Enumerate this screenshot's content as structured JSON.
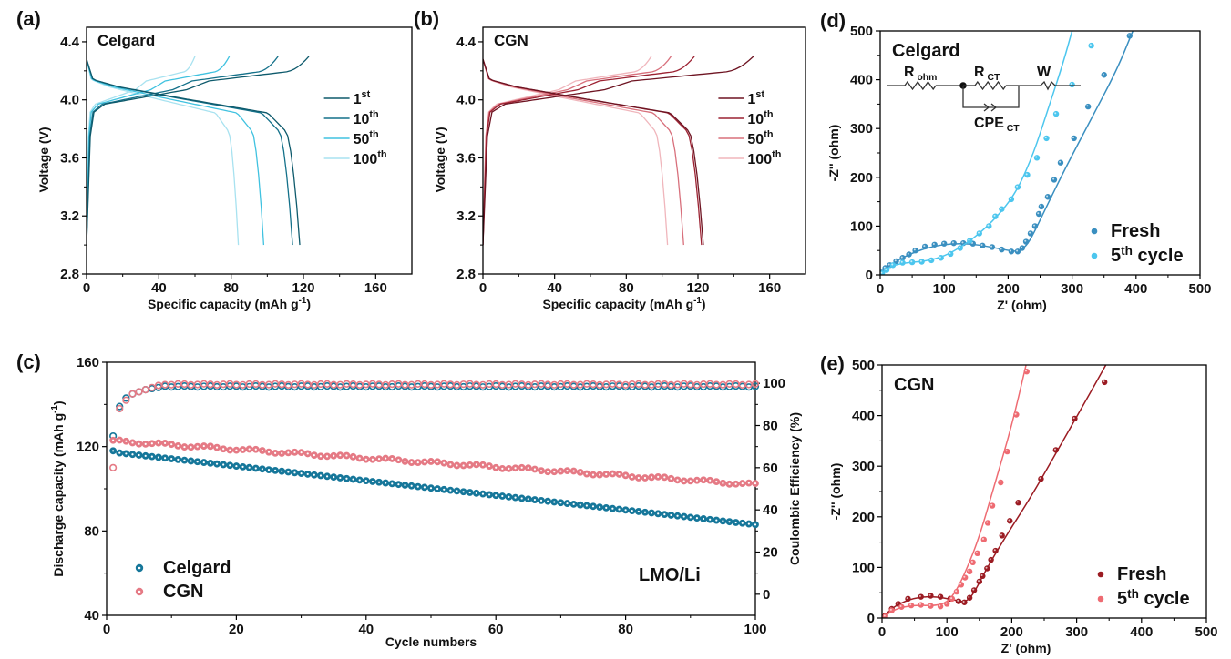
{
  "chart_data": [
    {
      "id": "a",
      "panel_label": "(a)",
      "type": "line",
      "title": "Celgard",
      "xlabel": "Specific capacity (mAh g",
      "xlabel_sup": "-1",
      "xlabel_end": ")",
      "ylabel": "Voltage (V)",
      "xlim": [
        0,
        180
      ],
      "ylim": [
        2.8,
        4.5
      ],
      "xticks": [
        0,
        40,
        80,
        120,
        160
      ],
      "yticks": [
        2.8,
        3.2,
        3.6,
        4.0,
        4.4
      ],
      "ytick_labels": [
        "2.8",
        "3.2",
        "3.6",
        "4.0",
        "4.4"
      ],
      "legend_position": "right",
      "series": [
        {
          "name": "1",
          "sup": "st",
          "color": "#0e5a6c",
          "charge_capacity": 123,
          "discharge_capacity": 118
        },
        {
          "name": "10",
          "sup": "th",
          "color": "#14718a",
          "charge_capacity": 106,
          "discharge_capacity": 114
        },
        {
          "name": "50",
          "sup": "th",
          "color": "#40c2e0",
          "charge_capacity": 79,
          "discharge_capacity": 98
        },
        {
          "name": "100",
          "sup": "th",
          "color": "#a8e2f0",
          "charge_capacity": 60,
          "discharge_capacity": 84
        }
      ]
    },
    {
      "id": "b",
      "panel_label": "(b)",
      "type": "line",
      "title": "CGN",
      "xlabel": "Specific capacity (mAh g",
      "xlabel_sup": "-1",
      "xlabel_end": ")",
      "ylabel": "Voltage (V)",
      "xlim": [
        0,
        180
      ],
      "ylim": [
        2.8,
        4.5
      ],
      "xticks": [
        0,
        40,
        80,
        120,
        160
      ],
      "yticks": [
        2.8,
        3.2,
        3.6,
        4.0,
        4.4
      ],
      "ytick_labels": [
        "2.8",
        "3.2",
        "3.6",
        "4.0",
        "4.4"
      ],
      "legend_position": "right",
      "series": [
        {
          "name": "1",
          "sup": "st",
          "color": "#6e1422",
          "charge_capacity": 151,
          "discharge_capacity": 123
        },
        {
          "name": "10",
          "sup": "th",
          "color": "#9c2232",
          "charge_capacity": 118,
          "discharge_capacity": 122
        },
        {
          "name": "50",
          "sup": "th",
          "color": "#d8707c",
          "charge_capacity": 105,
          "discharge_capacity": 112
        },
        {
          "name": "100",
          "sup": "th",
          "color": "#f0b6bc",
          "charge_capacity": 94,
          "discharge_capacity": 103
        }
      ]
    },
    {
      "id": "c",
      "panel_label": "(c)",
      "type": "scatter",
      "annotation": "LMO/Li",
      "xlabel": "Cycle numbers",
      "ylabel": "Discharge capacity (mAh g",
      "ylabel_sup": "-1",
      "ylabel_end": ")",
      "y2label": "Coulombic Efficiency (%)",
      "xlim": [
        0,
        100
      ],
      "ylim": [
        40,
        160
      ],
      "y2lim": [
        -10,
        110
      ],
      "xticks": [
        0,
        20,
        40,
        60,
        80,
        100
      ],
      "yticks": [
        40,
        80,
        120,
        160
      ],
      "y2ticks": [
        0,
        20,
        40,
        60,
        80,
        100
      ],
      "legend_position": "bottom-left",
      "series": [
        {
          "name": "Celgard",
          "color": "#16779a",
          "capacity_first": 118,
          "capacity_cycle2": 117,
          "capacity_end": 83,
          "ce_points": [
            [
              1,
              125
            ],
            [
              2,
              139
            ],
            [
              3,
              143
            ],
            [
              4,
              145
            ],
            [
              5,
              146
            ],
            [
              6,
              147
            ],
            [
              7,
              147.5
            ],
            [
              8,
              148
            ]
          ],
          "ce_plateau": 148.5
        },
        {
          "name": "CGN",
          "color": "#e57a85",
          "capacity_first": 123,
          "capacity_cycle2": 122.5,
          "capacity_end": 102,
          "ce_points": [
            [
              1,
              110
            ],
            [
              2,
              138
            ],
            [
              3,
              142
            ],
            [
              4,
              145
            ],
            [
              5,
              146
            ],
            [
              6,
              147
            ],
            [
              7,
              148
            ],
            [
              8,
              149
            ]
          ],
          "ce_plateau": 149.5
        }
      ]
    },
    {
      "id": "d",
      "panel_label": "(d)",
      "type": "scatter",
      "title": "Celgard",
      "xlabel": "Z' (ohm)",
      "ylabel": "-Z'' (ohm)",
      "xlim": [
        0,
        500
      ],
      "ylim": [
        0,
        500
      ],
      "xticks": [
        0,
        100,
        200,
        300,
        400,
        500
      ],
      "yticks": [
        0,
        100,
        200,
        300,
        400,
        500
      ],
      "legend_position": "bottom-right",
      "circuit": {
        "r_ohm": "R",
        "r_ohm_sub": "ohm",
        "r_ct": "R",
        "r_ct_sub": "CT",
        "cpe": "CPE",
        "cpe_sub": "CT",
        "w": "W"
      },
      "series": [
        {
          "name": "Fresh",
          "sup": "",
          "color": "#3a8fc0",
          "points": [
            [
              3,
              5
            ],
            [
              8,
              14
            ],
            [
              15,
              20
            ],
            [
              25,
              28
            ],
            [
              35,
              35
            ],
            [
              45,
              42
            ],
            [
              55,
              50
            ],
            [
              70,
              58
            ],
            [
              85,
              62
            ],
            [
              100,
              64
            ],
            [
              115,
              65
            ],
            [
              130,
              65
            ],
            [
              145,
              64
            ],
            [
              160,
              60
            ],
            [
              175,
              57
            ],
            [
              190,
              52
            ],
            [
              205,
              48
            ],
            [
              215,
              48
            ],
            [
              222,
              55
            ],
            [
              228,
              68
            ],
            [
              235,
              85
            ],
            [
              242,
              100
            ],
            [
              248,
              125
            ],
            [
              252,
              140
            ],
            [
              262,
              160
            ],
            [
              272,
              195
            ],
            [
              282,
              230
            ],
            [
              303,
              280
            ],
            [
              325,
              345
            ],
            [
              350,
              410
            ],
            [
              390,
              490
            ]
          ],
          "fit": [
            [
              0,
              2
            ],
            [
              20,
              25
            ],
            [
              50,
              45
            ],
            [
              80,
              58
            ],
            [
              110,
              64
            ],
            [
              140,
              64
            ],
            [
              170,
              58
            ],
            [
              200,
              50
            ],
            [
              215,
              48
            ],
            [
              228,
              58
            ],
            [
              240,
              85
            ],
            [
              260,
              140
            ],
            [
              290,
              220
            ],
            [
              330,
              320
            ],
            [
              370,
              420
            ],
            [
              395,
              500
            ]
          ]
        },
        {
          "name": "5",
          "sup": "th",
          "suffix": " cycle",
          "color": "#4cc6ee",
          "points": [
            [
              3,
              3
            ],
            [
              10,
              10
            ],
            [
              20,
              20
            ],
            [
              35,
              25
            ],
            [
              50,
              26
            ],
            [
              65,
              27
            ],
            [
              80,
              30
            ],
            [
              95,
              35
            ],
            [
              110,
              43
            ],
            [
              125,
              55
            ],
            [
              140,
              70
            ],
            [
              155,
              85
            ],
            [
              170,
              100
            ],
            [
              180,
              120
            ],
            [
              190,
              135
            ],
            [
              205,
              155
            ],
            [
              215,
              180
            ],
            [
              230,
              205
            ],
            [
              245,
              240
            ],
            [
              260,
              280
            ],
            [
              275,
              330
            ],
            [
              300,
              390
            ],
            [
              330,
              470
            ]
          ],
          "fit": [
            [
              0,
              0
            ],
            [
              15,
              18
            ],
            [
              40,
              25
            ],
            [
              70,
              28
            ],
            [
              100,
              38
            ],
            [
              130,
              60
            ],
            [
              160,
              90
            ],
            [
              190,
              130
            ],
            [
              215,
              175
            ],
            [
              240,
              250
            ],
            [
              260,
              330
            ],
            [
              285,
              430
            ],
            [
              300,
              500
            ]
          ]
        }
      ]
    },
    {
      "id": "e",
      "panel_label": "(e)",
      "type": "scatter",
      "title": "CGN",
      "xlabel": "Z' (ohm)",
      "ylabel": "-Z'' (ohm)",
      "xlim": [
        0,
        500
      ],
      "ylim": [
        0,
        500
      ],
      "xticks": [
        0,
        100,
        200,
        300,
        400,
        500
      ],
      "yticks": [
        0,
        100,
        200,
        300,
        400,
        500
      ],
      "legend_position": "bottom-right",
      "series": [
        {
          "name": "Fresh",
          "sup": "",
          "color": "#9b1b22",
          "points": [
            [
              5,
              5
            ],
            [
              15,
              18
            ],
            [
              25,
              28
            ],
            [
              40,
              38
            ],
            [
              60,
              42
            ],
            [
              75,
              44
            ],
            [
              90,
              42
            ],
            [
              105,
              38
            ],
            [
              118,
              33
            ],
            [
              127,
              31
            ],
            [
              135,
              40
            ],
            [
              142,
              55
            ],
            [
              150,
              72
            ],
            [
              155,
              83
            ],
            [
              162,
              98
            ],
            [
              168,
              115
            ],
            [
              175,
              133
            ],
            [
              185,
              163
            ],
            [
              197,
              192
            ],
            [
              210,
              228
            ],
            [
              245,
              275
            ],
            [
              268,
              332
            ],
            [
              297,
              394
            ],
            [
              343,
              466
            ]
          ],
          "fit": [
            [
              0,
              0
            ],
            [
              20,
              25
            ],
            [
              50,
              40
            ],
            [
              80,
              43
            ],
            [
              110,
              36
            ],
            [
              128,
              31
            ],
            [
              140,
              45
            ],
            [
              160,
              95
            ],
            [
              190,
              160
            ],
            [
              230,
              240
            ],
            [
              270,
              330
            ],
            [
              310,
              420
            ],
            [
              345,
              500
            ]
          ]
        },
        {
          "name": "5",
          "sup": "th",
          "suffix": " cycle",
          "color": "#ee6b72",
          "points": [
            [
              5,
              3
            ],
            [
              15,
              15
            ],
            [
              30,
              22
            ],
            [
              45,
              25
            ],
            [
              60,
              26
            ],
            [
              75,
              24
            ],
            [
              90,
              23
            ],
            [
              100,
              28
            ],
            [
              108,
              38
            ],
            [
              115,
              52
            ],
            [
              122,
              66
            ],
            [
              128,
              80
            ],
            [
              135,
              92
            ],
            [
              140,
              110
            ],
            [
              147,
              128
            ],
            [
              157,
              155
            ],
            [
              163,
              188
            ],
            [
              170,
              222
            ],
            [
              183,
              268
            ],
            [
              193,
              329
            ],
            [
              207,
              402
            ],
            [
              223,
              487
            ]
          ],
          "fit": [
            [
              0,
              0
            ],
            [
              20,
              18
            ],
            [
              50,
              26
            ],
            [
              80,
              24
            ],
            [
              100,
              30
            ],
            [
              115,
              55
            ],
            [
              130,
              95
            ],
            [
              150,
              160
            ],
            [
              175,
              270
            ],
            [
              200,
              380
            ],
            [
              222,
              500
            ]
          ]
        }
      ]
    }
  ]
}
